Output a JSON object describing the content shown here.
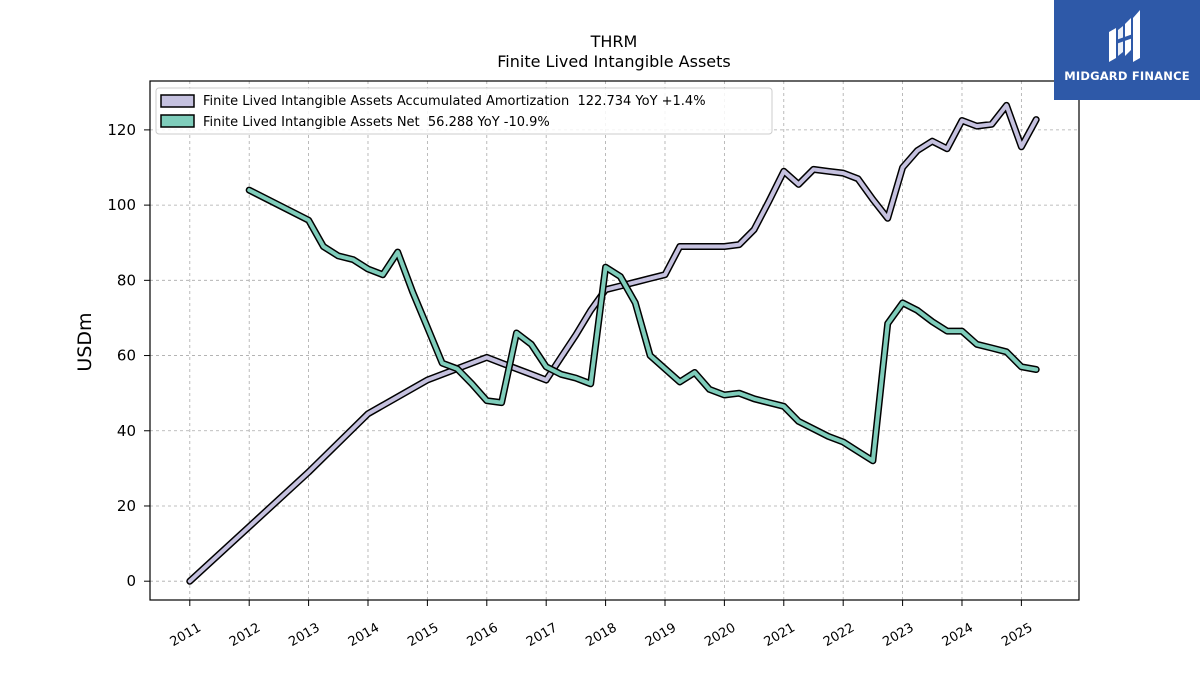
{
  "chart_data": {
    "type": "line",
    "title": "THRM",
    "subtitle": "Finite Lived Intangible Assets",
    "xlabel": "",
    "ylabel": "USDm",
    "ylim": [
      -5,
      133
    ],
    "xlim": [
      2010.33,
      2025.97
    ],
    "yticks": [
      0,
      20,
      40,
      60,
      80,
      100,
      120
    ],
    "xticks": [
      "2011",
      "2012",
      "2013",
      "2014",
      "2015",
      "2016",
      "2017",
      "2018",
      "2019",
      "2020",
      "2021",
      "2022",
      "2023",
      "2024",
      "2025"
    ],
    "grid": true,
    "legend_position": "top-left",
    "series": [
      {
        "name": "Finite Lived Intangible Assets Accumulated Amortization  122.734 YoY +1.4%",
        "color": "#c5c1df",
        "points": [
          [
            2011.0,
            0
          ],
          [
            2012.0,
            14.5
          ],
          [
            2013.0,
            29
          ],
          [
            2014.0,
            44.5
          ],
          [
            2015.0,
            53.5
          ],
          [
            2016.0,
            59.5
          ],
          [
            2016.25,
            58
          ],
          [
            2016.5,
            56.5
          ],
          [
            2016.75,
            55
          ],
          [
            2017.0,
            53.5
          ],
          [
            2017.25,
            59.5
          ],
          [
            2017.5,
            65.5
          ],
          [
            2017.75,
            72
          ],
          [
            2018.0,
            77.5
          ],
          [
            2018.25,
            78.5
          ],
          [
            2018.5,
            79.5
          ],
          [
            2018.75,
            80.5
          ],
          [
            2019.0,
            81.5
          ],
          [
            2019.25,
            89
          ],
          [
            2019.5,
            89
          ],
          [
            2019.75,
            89
          ],
          [
            2020.0,
            89
          ],
          [
            2020.25,
            89.5
          ],
          [
            2020.5,
            93.5
          ],
          [
            2020.75,
            101
          ],
          [
            2021.0,
            109
          ],
          [
            2021.25,
            105.5
          ],
          [
            2021.5,
            109.5
          ],
          [
            2021.75,
            109
          ],
          [
            2022.0,
            108.5
          ],
          [
            2022.25,
            107
          ],
          [
            2022.5,
            101.5
          ],
          [
            2022.75,
            96.5
          ],
          [
            2023.0,
            110
          ],
          [
            2023.25,
            114.5
          ],
          [
            2023.5,
            117
          ],
          [
            2023.75,
            115
          ],
          [
            2024.0,
            122.5
          ],
          [
            2024.25,
            121
          ],
          [
            2024.5,
            121.5
          ],
          [
            2024.75,
            126.5
          ],
          [
            2025.0,
            115.5
          ],
          [
            2025.25,
            122.734
          ]
        ]
      },
      {
        "name": "Finite Lived Intangible Assets Net  56.288 YoY -10.9%",
        "color": "#7fcdbb",
        "points": [
          [
            2012.0,
            104
          ],
          [
            2013.0,
            96
          ],
          [
            2013.25,
            89
          ],
          [
            2013.5,
            86.5
          ],
          [
            2013.75,
            85.5
          ],
          [
            2014.0,
            83
          ],
          [
            2014.25,
            81.5
          ],
          [
            2014.5,
            87.5
          ],
          [
            2014.75,
            77
          ],
          [
            2015.0,
            67.5
          ],
          [
            2015.25,
            58
          ],
          [
            2015.5,
            56.5
          ],
          [
            2015.75,
            52.5
          ],
          [
            2016.0,
            48
          ],
          [
            2016.25,
            47.5
          ],
          [
            2016.5,
            66
          ],
          [
            2016.75,
            63
          ],
          [
            2017.0,
            57
          ],
          [
            2017.25,
            55
          ],
          [
            2017.5,
            54
          ],
          [
            2017.75,
            52.5
          ],
          [
            2018.0,
            83.5
          ],
          [
            2018.25,
            81
          ],
          [
            2018.5,
            74
          ],
          [
            2018.75,
            60
          ],
          [
            2019.0,
            56.5
          ],
          [
            2019.25,
            53
          ],
          [
            2019.5,
            55.5
          ],
          [
            2019.75,
            51
          ],
          [
            2020.0,
            49.5
          ],
          [
            2020.25,
            50
          ],
          [
            2020.5,
            48.5
          ],
          [
            2020.75,
            47.5
          ],
          [
            2021.0,
            46.5
          ],
          [
            2021.25,
            42.5
          ],
          [
            2021.5,
            40.5
          ],
          [
            2021.75,
            38.5
          ],
          [
            2022.0,
            37
          ],
          [
            2022.25,
            34.5
          ],
          [
            2022.5,
            32
          ],
          [
            2022.75,
            68.5
          ],
          [
            2023.0,
            74
          ],
          [
            2023.25,
            72
          ],
          [
            2023.5,
            69
          ],
          [
            2023.75,
            66.5
          ],
          [
            2024.0,
            66.5
          ],
          [
            2024.25,
            63
          ],
          [
            2024.5,
            62
          ],
          [
            2024.75,
            61
          ],
          [
            2025.0,
            57
          ],
          [
            2025.25,
            56.288
          ]
        ]
      }
    ]
  },
  "branding": {
    "logo_text": "MIDGARD FINANCE",
    "logo_bg": "#2e59a8"
  }
}
